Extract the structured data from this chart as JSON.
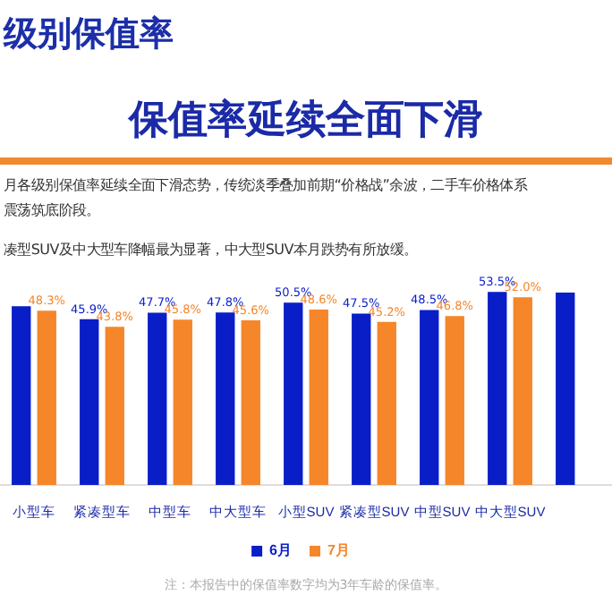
{
  "chart_data": {
    "type": "bar",
    "title": "保值率延续全面下滑",
    "annotations": [
      "级别保值率",
      "月各级别保值率延续全面下滑态势，传统淡季叠加前期“价格战”余波，二手车价格体系",
      "震荡筑底阶段。",
      "凑型SUV及中大型车降幅最为显著，中大型SUV本月跌势有所放缓。",
      "注：本报告中的保值率数字均为3年车龄的保值率。"
    ],
    "categories": [
      "小型车",
      "紧凑型车",
      "中型车",
      "中大型车",
      "小型SUV",
      "紧凑型SUV",
      "中型SUV",
      "中大型SUV",
      null
    ],
    "tick_labels": "x",
    "legend": "bottom",
    "series": [
      {
        "name": "6月",
        "color": "#0a1ec8",
        "values": [
          49.5,
          45.9,
          47.7,
          47.8,
          50.5,
          47.5,
          48.5,
          53.5,
          53.3
        ],
        "value_labels": [
          null,
          "45.9%",
          "47.7%",
          "47.8%",
          "50.5%",
          "47.5%",
          "48.5%",
          "53.5%",
          null
        ]
      },
      {
        "name": "7月",
        "color": "#f5862a",
        "values": [
          48.3,
          43.8,
          45.8,
          45.6,
          48.6,
          45.2,
          46.8,
          52.0,
          null
        ],
        "value_labels": [
          "48.3%",
          "43.8%",
          "45.8%",
          "45.6%",
          "48.6%",
          "45.2%",
          "46.8%",
          "52.0%",
          null
        ]
      }
    ]
  }
}
